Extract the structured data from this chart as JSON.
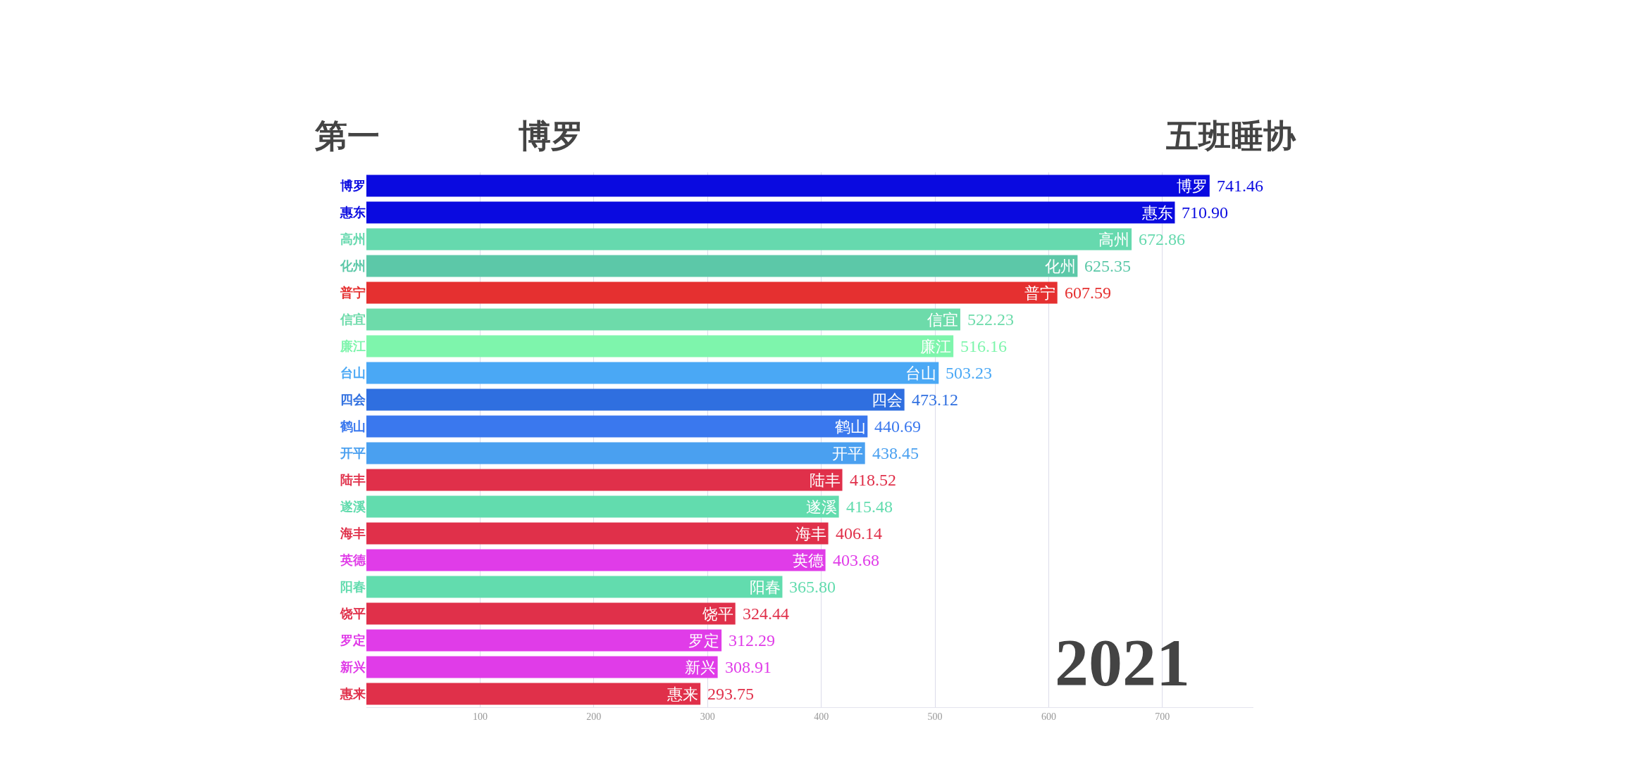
{
  "chart_data": {
    "type": "bar",
    "orientation": "horizontal",
    "title": "第一",
    "subtitle": "博罗",
    "annotations": [
      "五班睡协",
      "2021"
    ],
    "categories": [
      "博罗",
      "惠东",
      "高州",
      "化州",
      "普宁",
      "信宜",
      "廉江",
      "台山",
      "四会",
      "鹤山",
      "开平",
      "陆丰",
      "遂溪",
      "海丰",
      "英德",
      "阳春",
      "饶平",
      "罗定",
      "新兴",
      "惠来"
    ],
    "values": [
      741.46,
      710.9,
      672.86,
      625.35,
      607.59,
      522.23,
      516.16,
      503.23,
      473.12,
      440.69,
      438.45,
      418.52,
      415.48,
      406.14,
      403.68,
      365.8,
      324.44,
      312.29,
      308.91,
      293.75
    ],
    "value_labels": [
      "741.46",
      "710.90",
      "672.86",
      "625.35",
      "607.59",
      "522.23",
      "516.16",
      "503.23",
      "473.12",
      "440.69",
      "438.45",
      "418.52",
      "415.48",
      "406.14",
      "403.68",
      "365.80",
      "324.44",
      "312.29",
      "308.91",
      "293.75"
    ],
    "colors": [
      "#0a0ae0",
      "#0a0ae0",
      "#66d9ae",
      "#5cc8a8",
      "#e53030",
      "#6ddbaa",
      "#7ef5ac",
      "#4aa8f5",
      "#2f6fe0",
      "#3a78ee",
      "#4aa0f0",
      "#e0304a",
      "#62dcae",
      "#e0304a",
      "#e03ce8",
      "#62dcae",
      "#e0304a",
      "#e03ce8",
      "#e03ce8",
      "#e0304a"
    ],
    "xlim": [
      0,
      780
    ],
    "xticks": [
      100,
      200,
      300,
      400,
      500,
      600,
      700
    ],
    "grid": "x"
  }
}
